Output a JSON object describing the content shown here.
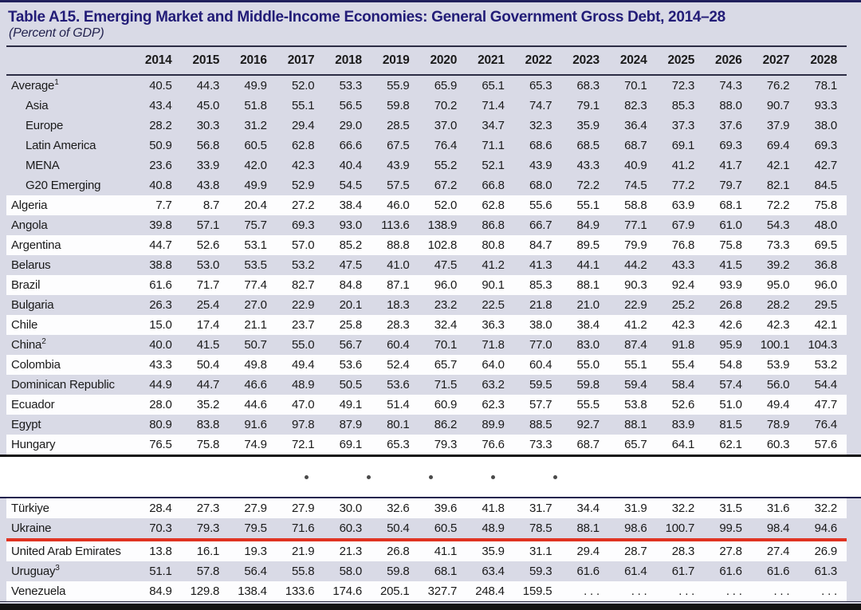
{
  "page": {
    "title": "Table A15. Emerging Market and Middle-Income Economies: General Government Gross Debt, 2014–28",
    "subtitle": "(Percent of GDP)"
  },
  "colors": {
    "title_navy": "#221c77",
    "row_shade_lavender": "#d9dae6",
    "row_white": "#fdfdfe",
    "highlight_red": "#e03322",
    "text": "#1a1a1a"
  },
  "table": {
    "columns": [
      "2014",
      "2015",
      "2016",
      "2017",
      "2018",
      "2019",
      "2020",
      "2021",
      "2022",
      "2023",
      "2024",
      "2025",
      "2026",
      "2027",
      "2028"
    ],
    "separator_dots": 5,
    "sections": [
      {
        "rows": [
          {
            "label": "Average",
            "sup": "1",
            "indent": false,
            "shade": "lav",
            "highlight": false,
            "values": [
              "40.5",
              "44.3",
              "49.9",
              "52.0",
              "53.3",
              "55.9",
              "65.9",
              "65.1",
              "65.3",
              "68.3",
              "70.1",
              "72.3",
              "74.3",
              "76.2",
              "78.1"
            ]
          },
          {
            "label": "Asia",
            "sup": "",
            "indent": true,
            "shade": "lav",
            "highlight": false,
            "values": [
              "43.4",
              "45.0",
              "51.8",
              "55.1",
              "56.5",
              "59.8",
              "70.2",
              "71.4",
              "74.7",
              "79.1",
              "82.3",
              "85.3",
              "88.0",
              "90.7",
              "93.3"
            ]
          },
          {
            "label": "Europe",
            "sup": "",
            "indent": true,
            "shade": "lav",
            "highlight": false,
            "values": [
              "28.2",
              "30.3",
              "31.2",
              "29.4",
              "29.0",
              "28.5",
              "37.0",
              "34.7",
              "32.3",
              "35.9",
              "36.4",
              "37.3",
              "37.6",
              "37.9",
              "38.0"
            ]
          },
          {
            "label": "Latin America",
            "sup": "",
            "indent": true,
            "shade": "lav",
            "highlight": false,
            "values": [
              "50.9",
              "56.8",
              "60.5",
              "62.8",
              "66.6",
              "67.5",
              "76.4",
              "71.1",
              "68.6",
              "68.5",
              "68.7",
              "69.1",
              "69.3",
              "69.4",
              "69.3"
            ]
          },
          {
            "label": "MENA",
            "sup": "",
            "indent": true,
            "shade": "lav",
            "highlight": false,
            "values": [
              "23.6",
              "33.9",
              "42.0",
              "42.3",
              "40.4",
              "43.9",
              "55.2",
              "52.1",
              "43.9",
              "43.3",
              "40.9",
              "41.2",
              "41.7",
              "42.1",
              "42.7"
            ]
          },
          {
            "label": "G20 Emerging",
            "sup": "",
            "indent": true,
            "shade": "lav",
            "highlight": false,
            "values": [
              "40.8",
              "43.8",
              "49.9",
              "52.9",
              "54.5",
              "57.5",
              "67.2",
              "66.8",
              "68.0",
              "72.2",
              "74.5",
              "77.2",
              "79.7",
              "82.1",
              "84.5"
            ]
          },
          {
            "label": "Algeria",
            "sup": "",
            "indent": false,
            "shade": "white",
            "highlight": false,
            "values": [
              "7.7",
              "8.7",
              "20.4",
              "27.2",
              "38.4",
              "46.0",
              "52.0",
              "62.8",
              "55.6",
              "55.1",
              "58.8",
              "63.9",
              "68.1",
              "72.2",
              "75.8"
            ]
          },
          {
            "label": "Angola",
            "sup": "",
            "indent": false,
            "shade": "lav",
            "highlight": false,
            "values": [
              "39.8",
              "57.1",
              "75.7",
              "69.3",
              "93.0",
              "113.6",
              "138.9",
              "86.8",
              "66.7",
              "84.9",
              "77.1",
              "67.9",
              "61.0",
              "54.3",
              "48.0"
            ]
          },
          {
            "label": "Argentina",
            "sup": "",
            "indent": false,
            "shade": "white",
            "highlight": false,
            "values": [
              "44.7",
              "52.6",
              "53.1",
              "57.0",
              "85.2",
              "88.8",
              "102.8",
              "80.8",
              "84.7",
              "89.5",
              "79.9",
              "76.8",
              "75.8",
              "73.3",
              "69.5"
            ]
          },
          {
            "label": "Belarus",
            "sup": "",
            "indent": false,
            "shade": "lav",
            "highlight": false,
            "values": [
              "38.8",
              "53.0",
              "53.5",
              "53.2",
              "47.5",
              "41.0",
              "47.5",
              "41.2",
              "41.3",
              "44.1",
              "44.2",
              "43.3",
              "41.5",
              "39.2",
              "36.8"
            ]
          },
          {
            "label": "Brazil",
            "sup": "",
            "indent": false,
            "shade": "white",
            "highlight": false,
            "values": [
              "61.6",
              "71.7",
              "77.4",
              "82.7",
              "84.8",
              "87.1",
              "96.0",
              "90.1",
              "85.3",
              "88.1",
              "90.3",
              "92.4",
              "93.9",
              "95.0",
              "96.0"
            ]
          },
          {
            "label": "Bulgaria",
            "sup": "",
            "indent": false,
            "shade": "lav",
            "highlight": false,
            "values": [
              "26.3",
              "25.4",
              "27.0",
              "22.9",
              "20.1",
              "18.3",
              "23.2",
              "22.5",
              "21.8",
              "21.0",
              "22.9",
              "25.2",
              "26.8",
              "28.2",
              "29.5"
            ]
          },
          {
            "label": "Chile",
            "sup": "",
            "indent": false,
            "shade": "white",
            "highlight": false,
            "values": [
              "15.0",
              "17.4",
              "21.1",
              "23.7",
              "25.8",
              "28.3",
              "32.4",
              "36.3",
              "38.0",
              "38.4",
              "41.2",
              "42.3",
              "42.6",
              "42.3",
              "42.1"
            ]
          },
          {
            "label": "China",
            "sup": "2",
            "indent": false,
            "shade": "lav",
            "highlight": false,
            "values": [
              "40.0",
              "41.5",
              "50.7",
              "55.0",
              "56.7",
              "60.4",
              "70.1",
              "71.8",
              "77.0",
              "83.0",
              "87.4",
              "91.8",
              "95.9",
              "100.1",
              "104.3"
            ]
          },
          {
            "label": "Colombia",
            "sup": "",
            "indent": false,
            "shade": "white",
            "highlight": false,
            "values": [
              "43.3",
              "50.4",
              "49.8",
              "49.4",
              "53.6",
              "52.4",
              "65.7",
              "64.0",
              "60.4",
              "55.0",
              "55.1",
              "55.4",
              "54.8",
              "53.9",
              "53.2"
            ]
          },
          {
            "label": "Dominican Republic",
            "sup": "",
            "indent": false,
            "shade": "lav",
            "highlight": false,
            "values": [
              "44.9",
              "44.7",
              "46.6",
              "48.9",
              "50.5",
              "53.6",
              "71.5",
              "63.2",
              "59.5",
              "59.8",
              "59.4",
              "58.4",
              "57.4",
              "56.0",
              "54.4"
            ]
          },
          {
            "label": "Ecuador",
            "sup": "",
            "indent": false,
            "shade": "white",
            "highlight": false,
            "values": [
              "28.0",
              "35.2",
              "44.6",
              "47.0",
              "49.1",
              "51.4",
              "60.9",
              "62.3",
              "57.7",
              "55.5",
              "53.8",
              "52.6",
              "51.0",
              "49.4",
              "47.7"
            ]
          },
          {
            "label": "Egypt",
            "sup": "",
            "indent": false,
            "shade": "lav",
            "highlight": false,
            "values": [
              "80.9",
              "83.8",
              "91.6",
              "97.8",
              "87.9",
              "80.1",
              "86.2",
              "89.9",
              "88.5",
              "92.7",
              "88.1",
              "83.9",
              "81.5",
              "78.9",
              "76.4"
            ]
          },
          {
            "label": "Hungary",
            "sup": "",
            "indent": false,
            "shade": "white",
            "highlight": false,
            "values": [
              "76.5",
              "75.8",
              "74.9",
              "72.1",
              "69.1",
              "65.3",
              "79.3",
              "76.6",
              "73.3",
              "68.7",
              "65.7",
              "64.1",
              "62.1",
              "60.3",
              "57.6"
            ]
          }
        ]
      },
      {
        "rows": [
          {
            "label": "Türkiye",
            "sup": "",
            "indent": false,
            "shade": "white",
            "highlight": false,
            "values": [
              "28.4",
              "27.3",
              "27.9",
              "27.9",
              "30.0",
              "32.6",
              "39.6",
              "41.8",
              "31.7",
              "34.4",
              "31.9",
              "32.2",
              "31.5",
              "31.6",
              "32.2"
            ]
          },
          {
            "label": "Ukraine",
            "sup": "",
            "indent": false,
            "shade": "lav",
            "highlight": true,
            "values": [
              "70.3",
              "79.3",
              "79.5",
              "71.6",
              "60.3",
              "50.4",
              "60.5",
              "48.9",
              "78.5",
              "88.1",
              "98.6",
              "100.7",
              "99.5",
              "98.4",
              "94.6"
            ]
          },
          {
            "label": "United Arab Emirates",
            "sup": "",
            "indent": false,
            "shade": "white",
            "highlight": false,
            "values": [
              "13.8",
              "16.1",
              "19.3",
              "21.9",
              "21.3",
              "26.8",
              "41.1",
              "35.9",
              "31.1",
              "29.4",
              "28.7",
              "28.3",
              "27.8",
              "27.4",
              "26.9"
            ]
          },
          {
            "label": "Uruguay",
            "sup": "3",
            "indent": false,
            "shade": "lav",
            "highlight": false,
            "values": [
              "51.1",
              "57.8",
              "56.4",
              "55.8",
              "58.0",
              "59.8",
              "68.1",
              "63.4",
              "59.3",
              "61.6",
              "61.4",
              "61.7",
              "61.6",
              "61.6",
              "61.3"
            ]
          },
          {
            "label": "Venezuela",
            "sup": "",
            "indent": false,
            "shade": "white",
            "highlight": false,
            "values": [
              "84.9",
              "129.8",
              "138.4",
              "133.6",
              "174.6",
              "205.1",
              "327.7",
              "248.4",
              "159.5",
              ". . .",
              ". . .",
              ". . .",
              ". . .",
              ". . .",
              ". . ."
            ]
          }
        ]
      }
    ]
  }
}
